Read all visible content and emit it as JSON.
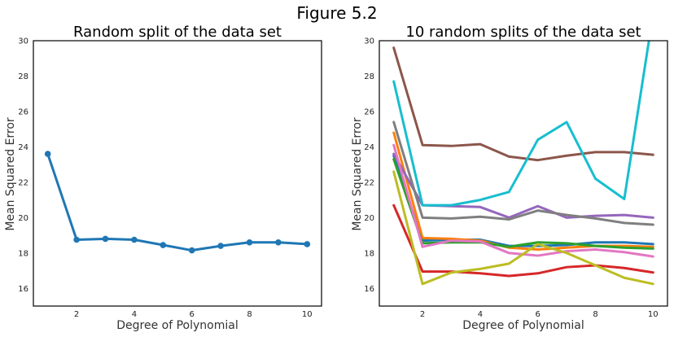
{
  "figure_title": "Figure 5.2",
  "chart_data": [
    {
      "type": "line",
      "title": "Random split of the data set",
      "xlabel": "Degree of Polynomial",
      "ylabel": "Mean Squared Error",
      "xlim": [
        0.5,
        10.5
      ],
      "ylim": [
        15,
        30
      ],
      "xticks": [
        2,
        4,
        6,
        8,
        10
      ],
      "yticks": [
        16,
        18,
        20,
        22,
        24,
        26,
        28,
        30
      ],
      "grid": false,
      "markers": true,
      "x": [
        1,
        2,
        3,
        4,
        5,
        6,
        7,
        8,
        9,
        10
      ],
      "series": [
        {
          "color": "#1f77b4",
          "values": [
            23.6,
            18.75,
            18.8,
            18.75,
            18.45,
            18.15,
            18.4,
            18.6,
            18.6,
            18.5
          ]
        }
      ]
    },
    {
      "type": "line",
      "title": "10 random splits of the data set",
      "xlabel": "Degree of Polynomial",
      "ylabel": "Mean Squared Error",
      "xlim": [
        0.5,
        10.5
      ],
      "ylim": [
        15,
        30
      ],
      "xticks": [
        2,
        4,
        6,
        8,
        10
      ],
      "yticks": [
        16,
        18,
        20,
        22,
        24,
        26,
        28,
        30
      ],
      "grid": false,
      "markers": false,
      "x": [
        1,
        2,
        3,
        4,
        5,
        6,
        7,
        8,
        9,
        10
      ],
      "series": [
        {
          "color": "#1f77b4",
          "values": [
            23.5,
            18.7,
            18.75,
            18.75,
            18.4,
            18.4,
            18.45,
            18.6,
            18.6,
            18.5
          ]
        },
        {
          "color": "#ff7f0e",
          "values": [
            24.8,
            18.85,
            18.8,
            18.7,
            18.3,
            18.2,
            18.3,
            18.4,
            18.4,
            18.35
          ]
        },
        {
          "color": "#2ca02c",
          "values": [
            23.3,
            18.55,
            18.6,
            18.6,
            18.35,
            18.6,
            18.55,
            18.4,
            18.3,
            18.25
          ]
        },
        {
          "color": "#d62728",
          "values": [
            20.7,
            16.95,
            16.95,
            16.85,
            16.7,
            16.85,
            17.2,
            17.3,
            17.15,
            16.9
          ]
        },
        {
          "color": "#9467bd",
          "values": [
            23.6,
            20.7,
            20.65,
            20.6,
            20.0,
            20.65,
            20.0,
            20.1,
            20.15,
            20.0
          ]
        },
        {
          "color": "#8c564b",
          "values": [
            29.6,
            24.1,
            24.05,
            24.15,
            23.45,
            23.25,
            23.5,
            23.7,
            23.7,
            23.55
          ]
        },
        {
          "color": "#e377c2",
          "values": [
            24.1,
            18.35,
            18.7,
            18.65,
            18.0,
            17.85,
            18.1,
            18.2,
            18.05,
            17.8
          ]
        },
        {
          "color": "#7f7f7f",
          "values": [
            25.4,
            20.0,
            19.95,
            20.05,
            19.9,
            20.4,
            20.15,
            19.95,
            19.7,
            19.6
          ]
        },
        {
          "color": "#bcbd22",
          "values": [
            22.6,
            16.25,
            16.9,
            17.1,
            17.4,
            18.5,
            18.0,
            17.3,
            16.6,
            16.25
          ]
        },
        {
          "color": "#17becf",
          "values": [
            27.7,
            20.7,
            20.7,
            21.0,
            21.45,
            24.4,
            25.4,
            22.2,
            21.05,
            31.5
          ]
        }
      ]
    }
  ]
}
